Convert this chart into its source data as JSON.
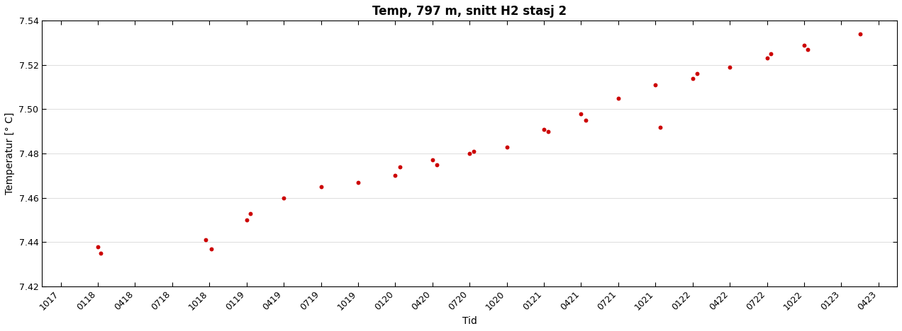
{
  "title": "Temp, 797 m, snitt H2 stasj 2",
  "xlabel": "Tid",
  "ylabel": "Temperatur [° C]",
  "x_tick_labels": [
    "1017",
    "0118",
    "0418",
    "0718",
    "1018",
    "0119",
    "0419",
    "0719",
    "1019",
    "0120",
    "0420",
    "0720",
    "1020",
    "0121",
    "0421",
    "0721",
    "1021",
    "0122",
    "0422",
    "0722",
    "1022",
    "0123",
    "0423"
  ],
  "ylim": [
    7.42,
    7.54
  ],
  "xlim": [
    -0.5,
    22.5
  ],
  "yticks": [
    7.42,
    7.44,
    7.46,
    7.48,
    7.5,
    7.52,
    7.54
  ],
  "dot_color": "#cc0000",
  "dot_size": 18,
  "background_color": "#ffffff",
  "title_fontsize": 12,
  "label_fontsize": 10,
  "tick_fontsize": 9,
  "point_x": [
    1.0,
    1.08,
    3.9,
    4.05,
    5.0,
    5.1,
    6.0,
    7.0,
    8.0,
    9.0,
    9.12,
    10.0,
    10.12,
    11.0,
    11.12,
    12.0,
    13.0,
    13.12,
    14.0,
    14.12,
    15.0,
    16.0,
    16.12,
    17.0,
    17.12,
    18.0,
    19.0,
    19.1,
    20.0,
    20.1,
    21.5
  ],
  "point_y": [
    7.438,
    7.435,
    7.441,
    7.437,
    7.45,
    7.453,
    7.46,
    7.465,
    7.467,
    7.47,
    7.474,
    7.477,
    7.475,
    7.48,
    7.481,
    7.483,
    7.491,
    7.49,
    7.498,
    7.495,
    7.505,
    7.511,
    7.492,
    7.514,
    7.516,
    7.519,
    7.523,
    7.525,
    7.529,
    7.527,
    7.534
  ]
}
